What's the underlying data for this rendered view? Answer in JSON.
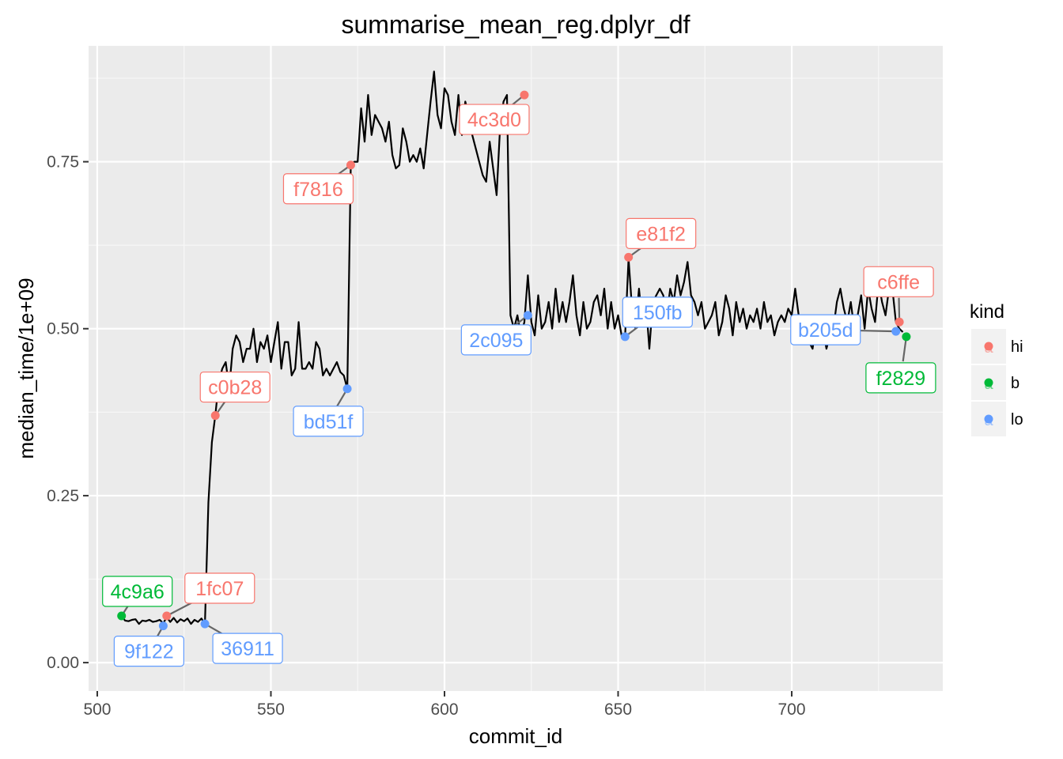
{
  "chart_data": {
    "type": "line",
    "title": "summarise_mean_reg.dplyr_df",
    "xlabel": "commit_id",
    "ylabel": "median_time/1e+09",
    "xlim": [
      497.5,
      743.5
    ],
    "ylim": [
      -0.0425,
      0.9235
    ],
    "xticks": [
      500,
      550,
      600,
      650,
      700
    ],
    "yticks": [
      0.0,
      0.25,
      0.5,
      0.75
    ],
    "ytick_labels": [
      "0.00",
      "0.25",
      "0.50",
      "0.75"
    ],
    "grid": true,
    "legend": {
      "title": "kind",
      "position": "right",
      "entries": [
        {
          "label": "hi",
          "color": "#F8766D"
        },
        {
          "label": "b",
          "color": "#00BA38"
        },
        {
          "label": "lo",
          "color": "#619CFF"
        }
      ]
    },
    "series": [
      {
        "color": "#000000",
        "points": [
          [
            507,
            0.07
          ],
          [
            508,
            0.063
          ],
          [
            509,
            0.062
          ],
          [
            510,
            0.064
          ],
          [
            511,
            0.065
          ],
          [
            512,
            0.058
          ],
          [
            513,
            0.063
          ],
          [
            514,
            0.062
          ],
          [
            515,
            0.064
          ],
          [
            516,
            0.061
          ],
          [
            517,
            0.062
          ],
          [
            518,
            0.064
          ],
          [
            519,
            0.059
          ],
          [
            520,
            0.068
          ],
          [
            521,
            0.061
          ],
          [
            522,
            0.067
          ],
          [
            523,
            0.06
          ],
          [
            524,
            0.065
          ],
          [
            525,
            0.062
          ],
          [
            526,
            0.066
          ],
          [
            527,
            0.058
          ],
          [
            528,
            0.064
          ],
          [
            529,
            0.061
          ],
          [
            530,
            0.066
          ],
          [
            531,
            0.058
          ],
          [
            532,
            0.24
          ],
          [
            533,
            0.33
          ],
          [
            534,
            0.37
          ],
          [
            535,
            0.42
          ],
          [
            536,
            0.44
          ],
          [
            537,
            0.45
          ],
          [
            538,
            0.41
          ],
          [
            539,
            0.47
          ],
          [
            540,
            0.49
          ],
          [
            541,
            0.48
          ],
          [
            542,
            0.45
          ],
          [
            543,
            0.47
          ],
          [
            544,
            0.47
          ],
          [
            545,
            0.5
          ],
          [
            546,
            0.45
          ],
          [
            547,
            0.48
          ],
          [
            548,
            0.47
          ],
          [
            549,
            0.49
          ],
          [
            550,
            0.45
          ],
          [
            551,
            0.48
          ],
          [
            552,
            0.51
          ],
          [
            553,
            0.44
          ],
          [
            554,
            0.48
          ],
          [
            555,
            0.48
          ],
          [
            556,
            0.43
          ],
          [
            557,
            0.44
          ],
          [
            558,
            0.51
          ],
          [
            559,
            0.44
          ],
          [
            560,
            0.44
          ],
          [
            561,
            0.45
          ],
          [
            562,
            0.44
          ],
          [
            563,
            0.48
          ],
          [
            564,
            0.47
          ],
          [
            565,
            0.43
          ],
          [
            566,
            0.44
          ],
          [
            567,
            0.43
          ],
          [
            568,
            0.44
          ],
          [
            569,
            0.45
          ],
          [
            570,
            0.435
          ],
          [
            571,
            0.43
          ],
          [
            572,
            0.41
          ],
          [
            573,
            0.745
          ],
          [
            574,
            0.75
          ],
          [
            575,
            0.75
          ],
          [
            576,
            0.83
          ],
          [
            577,
            0.78
          ],
          [
            578,
            0.85
          ],
          [
            579,
            0.79
          ],
          [
            580,
            0.82
          ],
          [
            581,
            0.81
          ],
          [
            582,
            0.8
          ],
          [
            583,
            0.78
          ],
          [
            584,
            0.81
          ],
          [
            585,
            0.76
          ],
          [
            586,
            0.74
          ],
          [
            587,
            0.745
          ],
          [
            588,
            0.8
          ],
          [
            589,
            0.78
          ],
          [
            590,
            0.75
          ],
          [
            591,
            0.76
          ],
          [
            592,
            0.75
          ],
          [
            593,
            0.77
          ],
          [
            594,
            0.74
          ],
          [
            595,
            0.79
          ],
          [
            596,
            0.84
          ],
          [
            597,
            0.885
          ],
          [
            598,
            0.82
          ],
          [
            599,
            0.8
          ],
          [
            600,
            0.86
          ],
          [
            601,
            0.85
          ],
          [
            602,
            0.81
          ],
          [
            603,
            0.79
          ],
          [
            604,
            0.85
          ],
          [
            605,
            0.79
          ],
          [
            606,
            0.84
          ],
          [
            607,
            0.82
          ],
          [
            608,
            0.79
          ],
          [
            609,
            0.77
          ],
          [
            610,
            0.75
          ],
          [
            611,
            0.73
          ],
          [
            612,
            0.72
          ],
          [
            613,
            0.78
          ],
          [
            614,
            0.74
          ],
          [
            615,
            0.7
          ],
          [
            616,
            0.8
          ],
          [
            617,
            0.84
          ],
          [
            618,
            0.85
          ],
          [
            619,
            0.52
          ],
          [
            620,
            0.5
          ],
          [
            621,
            0.52
          ],
          [
            622,
            0.49
          ],
          [
            623,
            0.51
          ],
          [
            624,
            0.58
          ],
          [
            625,
            0.51
          ],
          [
            626,
            0.49
          ],
          [
            627,
            0.55
          ],
          [
            628,
            0.5
          ],
          [
            629,
            0.51
          ],
          [
            630,
            0.54
          ],
          [
            631,
            0.5
          ],
          [
            632,
            0.56
          ],
          [
            633,
            0.51
          ],
          [
            634,
            0.54
          ],
          [
            635,
            0.51
          ],
          [
            636,
            0.54
          ],
          [
            637,
            0.58
          ],
          [
            638,
            0.52
          ],
          [
            639,
            0.49
          ],
          [
            640,
            0.54
          ],
          [
            641,
            0.5
          ],
          [
            642,
            0.51
          ],
          [
            643,
            0.54
          ],
          [
            644,
            0.55
          ],
          [
            645,
            0.52
          ],
          [
            646,
            0.56
          ],
          [
            647,
            0.5
          ],
          [
            648,
            0.54
          ],
          [
            649,
            0.5
          ],
          [
            650,
            0.52
          ],
          [
            651,
            0.49
          ],
          [
            652,
            0.488
          ],
          [
            653,
            0.605
          ],
          [
            654,
            0.53
          ],
          [
            655,
            0.5
          ],
          [
            656,
            0.56
          ],
          [
            657,
            0.51
          ],
          [
            658,
            0.54
          ],
          [
            659,
            0.47
          ],
          [
            660,
            0.54
          ],
          [
            661,
            0.55
          ],
          [
            662,
            0.56
          ],
          [
            663,
            0.55
          ],
          [
            664,
            0.52
          ],
          [
            665,
            0.56
          ],
          [
            666,
            0.54
          ],
          [
            667,
            0.58
          ],
          [
            668,
            0.55
          ],
          [
            669,
            0.57
          ],
          [
            670,
            0.6
          ],
          [
            671,
            0.55
          ],
          [
            672,
            0.54
          ],
          [
            673,
            0.52
          ],
          [
            674,
            0.54
          ],
          [
            675,
            0.5
          ],
          [
            676,
            0.51
          ],
          [
            677,
            0.52
          ],
          [
            678,
            0.54
          ],
          [
            679,
            0.49
          ],
          [
            680,
            0.51
          ],
          [
            681,
            0.55
          ],
          [
            682,
            0.53
          ],
          [
            683,
            0.49
          ],
          [
            684,
            0.54
          ],
          [
            685,
            0.51
          ],
          [
            686,
            0.53
          ],
          [
            687,
            0.5
          ],
          [
            688,
            0.52
          ],
          [
            689,
            0.51
          ],
          [
            690,
            0.53
          ],
          [
            691,
            0.5
          ],
          [
            692,
            0.54
          ],
          [
            693,
            0.51
          ],
          [
            694,
            0.52
          ],
          [
            695,
            0.49
          ],
          [
            696,
            0.51
          ],
          [
            697,
            0.52
          ],
          [
            698,
            0.51
          ],
          [
            699,
            0.53
          ],
          [
            700,
            0.52
          ],
          [
            701,
            0.56
          ],
          [
            702,
            0.52
          ],
          [
            703,
            0.5
          ],
          [
            704,
            0.51
          ],
          [
            705,
            0.48
          ],
          [
            706,
            0.47
          ],
          [
            707,
            0.51
          ],
          [
            708,
            0.48
          ],
          [
            709,
            0.5
          ],
          [
            710,
            0.47
          ],
          [
            711,
            0.49
          ],
          [
            712,
            0.5
          ],
          [
            713,
            0.54
          ],
          [
            714,
            0.56
          ],
          [
            715,
            0.53
          ],
          [
            716,
            0.51
          ],
          [
            717,
            0.54
          ],
          [
            718,
            0.5
          ],
          [
            719,
            0.52
          ],
          [
            720,
            0.55
          ],
          [
            721,
            0.5
          ],
          [
            722,
            0.56
          ],
          [
            723,
            0.53
          ],
          [
            724,
            0.51
          ],
          [
            725,
            0.57
          ],
          [
            726,
            0.54
          ],
          [
            727,
            0.52
          ],
          [
            728,
            0.56
          ],
          [
            729,
            0.56
          ],
          [
            730,
            0.51
          ],
          [
            731,
            0.5
          ],
          [
            732,
            0.495
          ]
        ]
      }
    ],
    "points": [
      {
        "label": "4c9a6",
        "kind": "b",
        "x": 507,
        "y": 0.07
      },
      {
        "label": "1fc07",
        "kind": "hi",
        "x": 520,
        "y": 0.07
      },
      {
        "label": "9f122",
        "kind": "lo",
        "x": 519,
        "y": 0.055
      },
      {
        "label": "36911",
        "kind": "lo",
        "x": 531,
        "y": 0.058
      },
      {
        "label": "c0b28",
        "kind": "hi",
        "x": 534,
        "y": 0.37
      },
      {
        "label": "bd51f",
        "kind": "lo",
        "x": 572,
        "y": 0.41
      },
      {
        "label": "f7816",
        "kind": "hi",
        "x": 573,
        "y": 0.745
      },
      {
        "label": "4c3d0",
        "kind": "hi",
        "x": 623,
        "y": 0.85
      },
      {
        "label": "2c095",
        "kind": "lo",
        "x": 624,
        "y": 0.52
      },
      {
        "label": "e81f2",
        "kind": "hi",
        "x": 653,
        "y": 0.607
      },
      {
        "label": "150fb",
        "kind": "lo",
        "x": 652,
        "y": 0.488
      },
      {
        "label": "c6ffe",
        "kind": "hi",
        "x": 731,
        "y": 0.51
      },
      {
        "label": "b205d",
        "kind": "lo",
        "x": 730,
        "y": 0.496
      },
      {
        "label": "f2829",
        "kind": "b",
        "x": 733,
        "y": 0.488
      }
    ],
    "colors": {
      "hi": "#F8766D",
      "b": "#00BA38",
      "lo": "#619CFF"
    }
  }
}
